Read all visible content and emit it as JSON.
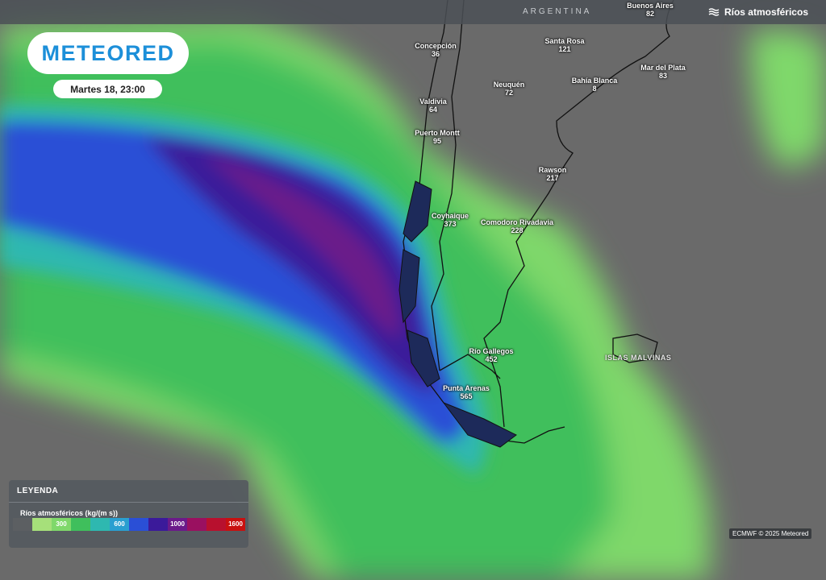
{
  "header": {
    "country_label": "ARGENTINA",
    "layer_title": "Ríos atmosféricos",
    "layer_icon": "wind-waves-icon"
  },
  "brand": {
    "logo_text": "METEORED",
    "color": "#1c8fd9"
  },
  "forecast_time": "Martes 18, 23:00",
  "cities": [
    {
      "name": "Buenos Aires",
      "value": "82"
    },
    {
      "name": "Concepción",
      "value": "36"
    },
    {
      "name": "Santa Rosa",
      "value": "121"
    },
    {
      "name": "Mar del Plata",
      "value": "83"
    },
    {
      "name": "Neuquén",
      "value": "72"
    },
    {
      "name": "Bahía Blanca",
      "value": "8"
    },
    {
      "name": "Valdivia",
      "value": "64"
    },
    {
      "name": "Puerto Montt",
      "value": "95"
    },
    {
      "name": "Rawson",
      "value": "217"
    },
    {
      "name": "Coyhaique",
      "value": "373"
    },
    {
      "name": "Comodoro Rivadavia",
      "value": "228"
    },
    {
      "name": "Río Gallegos",
      "value": "452"
    },
    {
      "name": "Punta Arenas",
      "value": "565"
    }
  ],
  "regions": {
    "malvinas": "ISLAS MALVINAS"
  },
  "legend": {
    "title": "LEYENDA",
    "variable": "Ríos atmosféricos (kg/(m s))",
    "stops": [
      {
        "color": "#5c5f62",
        "label": ""
      },
      {
        "color": "#a6e07a",
        "label": ""
      },
      {
        "color": "#7fd86a",
        "label": "300"
      },
      {
        "color": "#3fbf5c",
        "label": ""
      },
      {
        "color": "#2eb8b0",
        "label": ""
      },
      {
        "color": "#2a9fd0",
        "label": "600"
      },
      {
        "color": "#2a4fd6",
        "label": ""
      },
      {
        "color": "#3b1a9a",
        "label": ""
      },
      {
        "color": "#6b1a8a",
        "label": "1000"
      },
      {
        "color": "#9a1060",
        "label": ""
      },
      {
        "color": "#b8102e",
        "label": ""
      },
      {
        "color": "#c81010",
        "label": "1600"
      }
    ]
  },
  "credit": "ECMWF © 2025 Meteored"
}
